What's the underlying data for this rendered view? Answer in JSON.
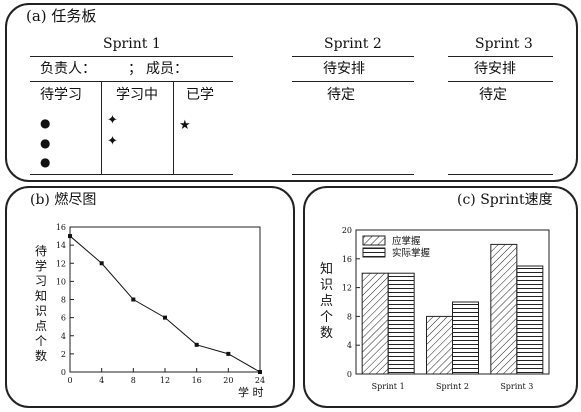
{
  "task_board": {
    "title": "(a) 任务板",
    "sprint1": {
      "name": "Sprint 1",
      "owner_label": "负责人：",
      "separator": "；",
      "members_label": "成员：",
      "columns": [
        "待学习",
        "学习中",
        "已学"
      ],
      "todo_marks": [
        "●",
        "●",
        "●"
      ],
      "doing_marks": [
        "✦",
        "✦"
      ],
      "done_marks": [
        "★"
      ]
    },
    "sprint2": {
      "name": "Sprint 2",
      "status": "待安排",
      "detail": "待定"
    },
    "sprint3": {
      "name": "Sprint 3",
      "status": "待安排",
      "detail": "待定"
    }
  },
  "chart_data": [
    {
      "type": "line",
      "title": "(b) 燃尽图",
      "xlabel": "学 时",
      "ylabel": "待学习知识点个数",
      "x": [
        0,
        4,
        8,
        12,
        16,
        20,
        24
      ],
      "y": [
        15,
        12,
        8,
        6,
        3,
        2,
        0
      ],
      "xticks": [
        0,
        4,
        8,
        12,
        16,
        20,
        24
      ],
      "yticks": [
        0,
        2,
        4,
        6,
        8,
        10,
        12,
        14,
        16
      ],
      "xlim": [
        0,
        24
      ],
      "ylim": [
        0,
        16
      ],
      "marker": "square",
      "grid": false
    },
    {
      "type": "bar",
      "title": "(c) Sprint速度",
      "ylabel": "知识点个数",
      "categories": [
        "Sprint 1",
        "Sprint 2",
        "Sprint 3"
      ],
      "series": [
        {
          "name": "应掌握",
          "values": [
            14,
            8,
            18
          ],
          "pattern": "diagonal"
        },
        {
          "name": "实际掌握",
          "values": [
            14,
            10,
            15
          ],
          "pattern": "horizontal"
        }
      ],
      "yticks": [
        0,
        4,
        8,
        12,
        16,
        20
      ],
      "ylim": [
        0,
        20
      ],
      "legend": "top-left",
      "grid": false
    }
  ]
}
